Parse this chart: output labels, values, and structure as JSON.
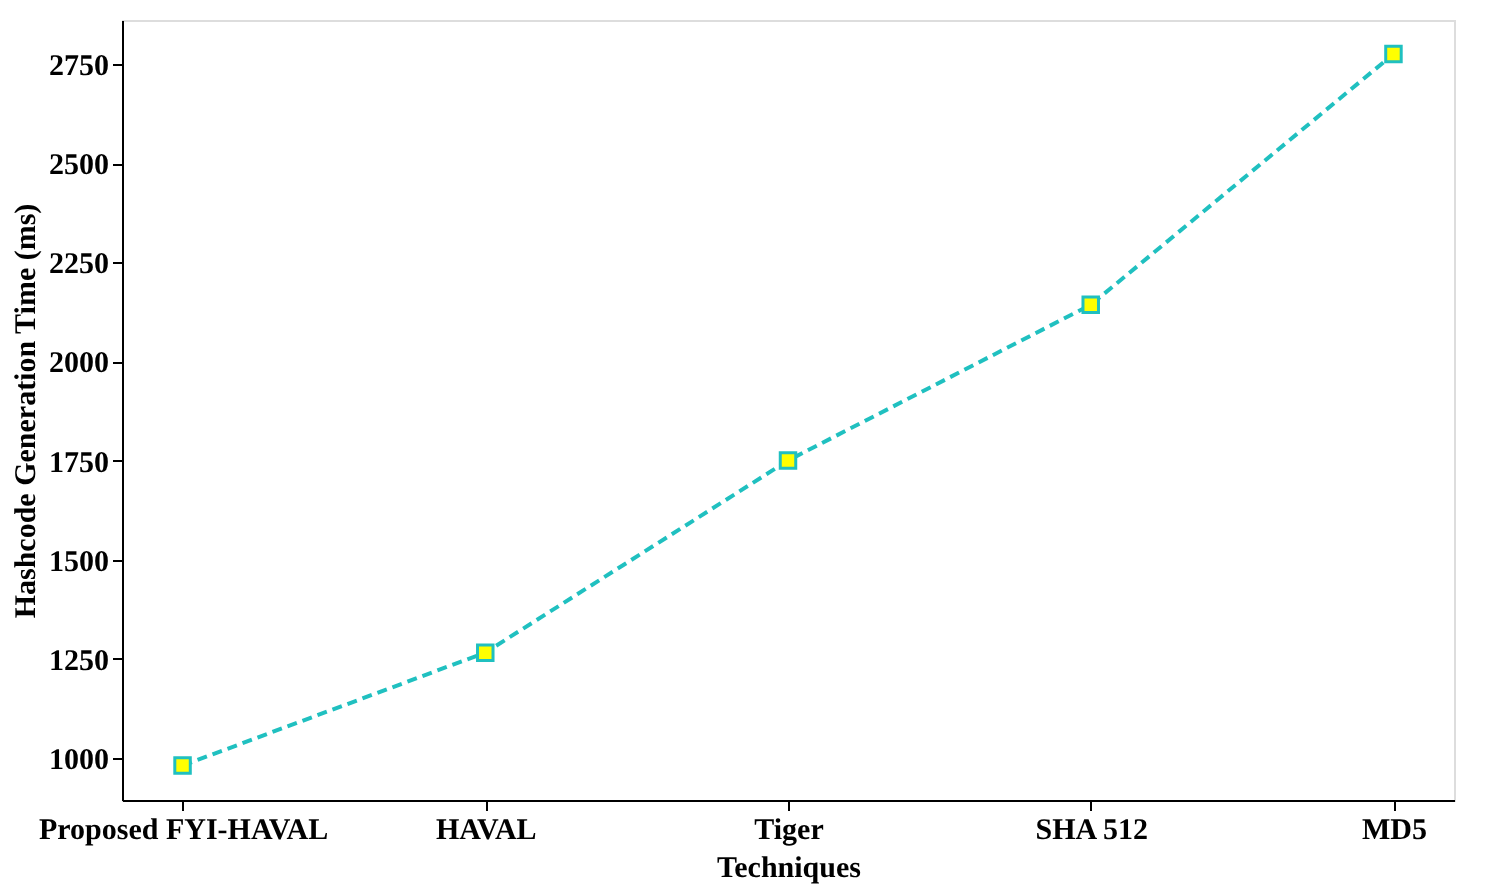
{
  "chart_data": {
    "type": "line",
    "xlabel": "Techniques",
    "ylabel": "Hashcode Generation Time (ms)",
    "categories": [
      "Proposed FYI-HAVAL",
      "HAVAL",
      "Tiger",
      "SHA 512",
      "MD5"
    ],
    "series": [
      {
        "color": "#20c0c0",
        "values": [
          980,
          1265,
          1750,
          2143,
          2776
        ]
      }
    ],
    "ylim": [
      893,
      2862
    ],
    "yticks": [
      1000,
      1250,
      1500,
      1750,
      2000,
      2250,
      2500,
      2750
    ],
    "marker": "square",
    "line_style": "dashed",
    "grid": false
  }
}
